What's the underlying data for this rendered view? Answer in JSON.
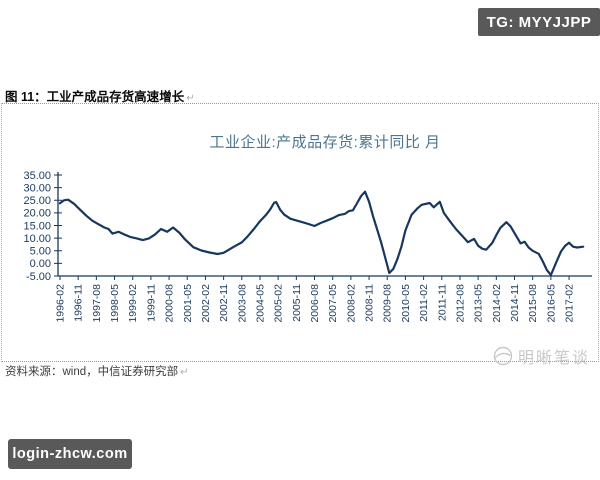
{
  "badges": {
    "tg": "TG: MYYJJPP",
    "site": "login-zhcw.com"
  },
  "figure": {
    "caption": "图 11：工业产成品存货高速增长",
    "return_mark": "↵",
    "source": "资料来源：wind，中信证券研究部"
  },
  "watermark": {
    "text": "明晰笔谈"
  },
  "colors": {
    "line": "#17375e",
    "axis": "#17375e",
    "tick_label": "#1b3a5e",
    "chart_title": "#4e7590",
    "badge_bg": "#595959",
    "watermark": "#c8c8c8"
  },
  "chart_data": {
    "type": "line",
    "title": "工业企业:产成品存货:累计同比 月",
    "xlabel": "",
    "ylabel": "",
    "ylim": [
      -5,
      35
    ],
    "grid": false,
    "legend_position": "none",
    "ytick_labels": [
      "35.00",
      "30.00",
      "25.00",
      "20.00",
      "15.00",
      "10.00",
      "5.00",
      "0.00",
      "-5.00"
    ],
    "ytick_values": [
      35,
      30,
      25,
      20,
      15,
      10,
      5,
      0,
      -5
    ],
    "xtick_labels": [
      "1996-02",
      "1996-11",
      "1997-08",
      "1998-05",
      "1999-02",
      "1999-11",
      "2000-08",
      "2001-05",
      "2002-02",
      "2002-11",
      "2003-08",
      "2004-05",
      "2005-02",
      "2005-11",
      "2006-08",
      "2007-05",
      "2008-02",
      "2008-11",
      "2009-08",
      "2010-05",
      "2011-02",
      "2011-11",
      "2012-08",
      "2013-05",
      "2014-02",
      "2014-11",
      "2015-08",
      "2016-05",
      "2017-02"
    ],
    "xtick_month_step": 9,
    "series": [
      {
        "name": "工业企业:产成品存货:累计同比 月",
        "points": [
          [
            "1996-02",
            23.8
          ],
          [
            "1996-04",
            25.0
          ],
          [
            "1996-06",
            25.2
          ],
          [
            "1996-09",
            23.6
          ],
          [
            "1996-12",
            21.2
          ],
          [
            "1997-03",
            18.9
          ],
          [
            "1997-06",
            16.9
          ],
          [
            "1997-09",
            15.5
          ],
          [
            "1997-12",
            14.2
          ],
          [
            "1998-02",
            13.6
          ],
          [
            "1998-04",
            11.8
          ],
          [
            "1998-07",
            12.5
          ],
          [
            "1998-10",
            11.4
          ],
          [
            "1999-01",
            10.4
          ],
          [
            "1999-04",
            9.9
          ],
          [
            "1999-07",
            9.2
          ],
          [
            "1999-10",
            9.9
          ],
          [
            "2000-01",
            11.4
          ],
          [
            "2000-04",
            13.6
          ],
          [
            "2000-07",
            12.5
          ],
          [
            "2000-10",
            14.2
          ],
          [
            "2001-01",
            12.2
          ],
          [
            "2001-04",
            9.4
          ],
          [
            "2001-08",
            6.4
          ],
          [
            "2001-12",
            5.1
          ],
          [
            "2002-04",
            4.3
          ],
          [
            "2002-08",
            3.7
          ],
          [
            "2002-11",
            4.2
          ],
          [
            "2003-02",
            5.6
          ],
          [
            "2003-05",
            7.0
          ],
          [
            "2003-08",
            8.3
          ],
          [
            "2003-11",
            10.8
          ],
          [
            "2004-02",
            13.6
          ],
          [
            "2004-05",
            16.7
          ],
          [
            "2004-08",
            19.2
          ],
          [
            "2004-10",
            21.3
          ],
          [
            "2004-12",
            24.0
          ],
          [
            "2005-01",
            24.3
          ],
          [
            "2005-03",
            21.2
          ],
          [
            "2005-05",
            19.3
          ],
          [
            "2005-08",
            17.7
          ],
          [
            "2005-11",
            17.0
          ],
          [
            "2006-02",
            16.3
          ],
          [
            "2006-05",
            15.6
          ],
          [
            "2006-08",
            14.8
          ],
          [
            "2006-11",
            16.0
          ],
          [
            "2007-02",
            16.9
          ],
          [
            "2007-05",
            17.9
          ],
          [
            "2007-08",
            19.1
          ],
          [
            "2007-11",
            19.6
          ],
          [
            "2008-01",
            20.7
          ],
          [
            "2008-03",
            21.0
          ],
          [
            "2008-05",
            23.7
          ],
          [
            "2008-07",
            26.6
          ],
          [
            "2008-09",
            28.4
          ],
          [
            "2008-11",
            24.4
          ],
          [
            "2009-01",
            18.6
          ],
          [
            "2009-03",
            13.5
          ],
          [
            "2009-05",
            8.2
          ],
          [
            "2009-07",
            2.3
          ],
          [
            "2009-09",
            -3.8
          ],
          [
            "2009-11",
            -2.2
          ],
          [
            "2010-01",
            1.6
          ],
          [
            "2010-03",
            6.6
          ],
          [
            "2010-05",
            13.0
          ],
          [
            "2010-08",
            19.2
          ],
          [
            "2010-11",
            21.8
          ],
          [
            "2011-01",
            23.2
          ],
          [
            "2011-05",
            23.9
          ],
          [
            "2011-07",
            22.2
          ],
          [
            "2011-10",
            24.4
          ],
          [
            "2011-12",
            20.0
          ],
          [
            "2012-03",
            16.7
          ],
          [
            "2012-06",
            13.6
          ],
          [
            "2012-09",
            11.0
          ],
          [
            "2012-12",
            8.4
          ],
          [
            "2013-03",
            9.7
          ],
          [
            "2013-05",
            7.0
          ],
          [
            "2013-07",
            5.8
          ],
          [
            "2013-09",
            5.4
          ],
          [
            "2013-12",
            8.1
          ],
          [
            "2014-02",
            11.2
          ],
          [
            "2014-04",
            14.1
          ],
          [
            "2014-07",
            16.3
          ],
          [
            "2014-09",
            14.7
          ],
          [
            "2014-11",
            12.0
          ],
          [
            "2015-02",
            7.9
          ],
          [
            "2015-04",
            8.6
          ],
          [
            "2015-06",
            6.3
          ],
          [
            "2015-08",
            5.0
          ],
          [
            "2015-11",
            3.8
          ],
          [
            "2016-01",
            0.8
          ],
          [
            "2016-03",
            -2.6
          ],
          [
            "2016-05",
            -4.6
          ],
          [
            "2016-08",
            1.0
          ],
          [
            "2016-10",
            4.7
          ],
          [
            "2016-12",
            6.9
          ],
          [
            "2017-02",
            8.2
          ],
          [
            "2017-04",
            6.6
          ],
          [
            "2017-06",
            6.3
          ],
          [
            "2017-09",
            6.6
          ]
        ]
      }
    ]
  }
}
